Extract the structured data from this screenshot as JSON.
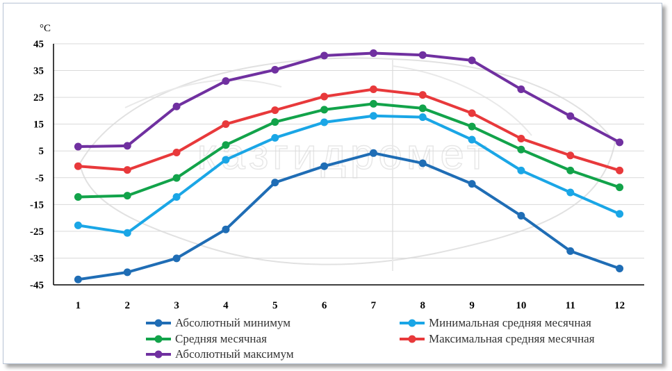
{
  "chart_data": {
    "type": "line",
    "ylabel": "°C",
    "xlabel": "",
    "title": "",
    "categories": [
      "1",
      "2",
      "3",
      "4",
      "5",
      "6",
      "7",
      "8",
      "9",
      "10",
      "11",
      "12"
    ],
    "ylim": [
      -45,
      45
    ],
    "yticks": [
      45,
      35,
      25,
      15,
      5,
      -5,
      -15,
      -25,
      -35,
      -45
    ],
    "grid": true,
    "legend_placement": "bottom",
    "watermark_text": "казгидромет",
    "series": [
      {
        "name": "Абсолютный минимум",
        "color": "#1f6db5",
        "values": [
          -43,
          -40.3,
          -35.1,
          -24.3,
          -6.8,
          -0.7,
          4.2,
          0.4,
          -7.3,
          -19.2,
          -32.4,
          -38.9
        ]
      },
      {
        "name": "Минимальная средняя месячная",
        "color": "#1aa6e6",
        "values": [
          -22.8,
          -25.6,
          -12.2,
          1.7,
          9.9,
          15.7,
          18.1,
          17.6,
          9.2,
          -2.3,
          -10.5,
          -18.5
        ]
      },
      {
        "name": "Средняя месячная",
        "color": "#12a34a",
        "values": [
          -12.2,
          -11.7,
          -5.1,
          7.2,
          15.8,
          20.4,
          22.6,
          20.9,
          14.1,
          5.5,
          -2.3,
          -8.6
        ]
      },
      {
        "name": "Максимальная средняя месячная",
        "color": "#e8393b",
        "values": [
          -0.7,
          -2.1,
          4.4,
          15,
          20.2,
          25.3,
          28,
          25.9,
          19.1,
          9.6,
          3.3,
          -2.3
        ]
      },
      {
        "name": "Абсолютный максимум",
        "color": "#7030a0",
        "values": [
          6.6,
          6.9,
          21.6,
          31.1,
          35.3,
          40.6,
          41.5,
          40.8,
          38.8,
          28,
          18,
          8.2
        ]
      }
    ]
  }
}
